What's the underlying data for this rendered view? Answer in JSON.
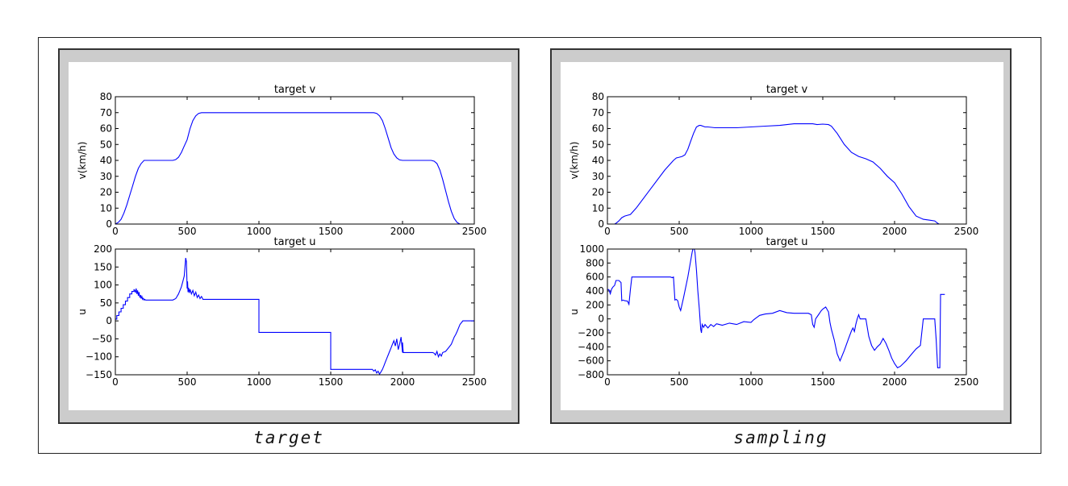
{
  "captions": [
    "target",
    "sampling"
  ],
  "chart_data": [
    {
      "type": "line",
      "panel": "target",
      "title": "target v",
      "xlabel": "",
      "ylabel": "v(km/h)",
      "xlim": [
        0,
        2500
      ],
      "ylim": [
        0,
        80
      ],
      "xticks": [
        "0",
        "500",
        "1000",
        "1500",
        "2000",
        "2500"
      ],
      "yticks": [
        "0",
        "10",
        "20",
        "30",
        "40",
        "50",
        "60",
        "70",
        "80"
      ],
      "color": "#0000ff",
      "x": [
        0,
        20,
        40,
        60,
        80,
        100,
        120,
        140,
        160,
        180,
        200,
        220,
        250,
        300,
        350,
        400,
        420,
        440,
        460,
        480,
        500,
        520,
        540,
        560,
        580,
        600,
        620,
        700,
        800,
        1000,
        1200,
        1400,
        1600,
        1800,
        1820,
        1840,
        1860,
        1880,
        1900,
        1920,
        1940,
        1960,
        1980,
        2000,
        2050,
        2100,
        2200,
        2220,
        2240,
        2260,
        2280,
        2300,
        2320,
        2340,
        2360,
        2380,
        2400,
        2420,
        2450,
        2500
      ],
      "y": [
        0,
        1,
        3,
        7,
        12,
        18,
        24,
        30,
        35,
        38,
        40,
        40,
        40,
        40,
        40,
        40,
        40.5,
        42,
        45,
        49,
        53,
        60,
        65,
        68,
        69.5,
        70,
        70,
        70,
        70,
        70,
        70,
        70,
        70,
        70,
        69.5,
        68,
        65,
        60,
        54,
        48,
        44,
        41.5,
        40.3,
        40,
        40,
        40,
        40,
        39.5,
        38,
        34,
        28,
        21,
        14,
        8,
        3.5,
        1,
        0,
        0,
        0,
        0
      ]
    },
    {
      "type": "line",
      "panel": "target",
      "title": "target u",
      "xlabel": "",
      "ylabel": "u",
      "xlim": [
        0,
        2500
      ],
      "ylim": [
        -150,
        200
      ],
      "xticks": [
        "0",
        "500",
        "1000",
        "1500",
        "2000",
        "2500"
      ],
      "yticks": [
        "200",
        "150",
        "100",
        "50",
        "0",
        "−50",
        "−100",
        "−150"
      ],
      "color": "#0000ff",
      "x": [
        0,
        10,
        10,
        25,
        25,
        40,
        40,
        55,
        55,
        70,
        70,
        85,
        85,
        100,
        100,
        115,
        115,
        130,
        130,
        140,
        145,
        150,
        155,
        160,
        165,
        170,
        175,
        180,
        185,
        190,
        195,
        200,
        205,
        210,
        400,
        420,
        430,
        440,
        450,
        460,
        470,
        480,
        485,
        490,
        495,
        500,
        503,
        506,
        510,
        515,
        520,
        530,
        540,
        550,
        560,
        570,
        580,
        590,
        600,
        610,
        1000,
        1000,
        1500,
        1500,
        1790,
        1800,
        1810,
        1820,
        1830,
        1840,
        1850,
        1860,
        1870,
        1880,
        1890,
        1900,
        1910,
        1920,
        1930,
        1940,
        1950,
        1960,
        1970,
        1980,
        1990,
        2000,
        2000,
        2005,
        2010,
        2210,
        2220,
        2230,
        2240,
        2250,
        2260,
        2270,
        2280,
        2300,
        2320,
        2340,
        2350,
        2360,
        2370,
        2380,
        2390,
        2400,
        2410,
        2420,
        2430,
        2500
      ],
      "y": [
        5,
        5,
        15,
        15,
        25,
        25,
        35,
        35,
        45,
        45,
        55,
        55,
        65,
        65,
        75,
        75,
        82,
        82,
        88,
        80,
        90,
        75,
        85,
        70,
        80,
        65,
        72,
        62,
        68,
        60,
        63,
        58,
        60,
        58,
        58,
        62,
        68,
        75,
        85,
        95,
        110,
        125,
        150,
        175,
        165,
        90,
        110,
        80,
        92,
        78,
        88,
        75,
        85,
        70,
        80,
        65,
        72,
        62,
        68,
        60,
        60,
        -32,
        -32,
        -135,
        -135,
        -140,
        -136,
        -145,
        -140,
        -148,
        -142,
        -135,
        -125,
        -115,
        -105,
        -95,
        -85,
        -75,
        -65,
        -55,
        -70,
        -50,
        -80,
        -65,
        -45,
        -88,
        -60,
        -88,
        -88,
        -88,
        -90,
        -95,
        -85,
        -100,
        -92,
        -98,
        -88,
        -85,
        -75,
        -65,
        -55,
        -45,
        -38,
        -30,
        -20,
        -10,
        -5,
        0,
        0,
        0
      ]
    },
    {
      "type": "line",
      "panel": "sampling",
      "title": "target v",
      "xlabel": "",
      "ylabel": "v(km/h)",
      "xlim": [
        0,
        2500
      ],
      "ylim": [
        0,
        80
      ],
      "xticks": [
        "0",
        "500",
        "1000",
        "1500",
        "2000",
        "2500"
      ],
      "yticks": [
        "0",
        "10",
        "20",
        "30",
        "40",
        "50",
        "60",
        "70",
        "80"
      ],
      "color": "#0000ff",
      "x": [
        0,
        50,
        60,
        80,
        100,
        120,
        140,
        160,
        200,
        300,
        400,
        460,
        480,
        500,
        520,
        540,
        560,
        580,
        600,
        620,
        640,
        650,
        680,
        700,
        750,
        800,
        850,
        900,
        1000,
        1100,
        1200,
        1300,
        1400,
        1430,
        1460,
        1500,
        1540,
        1560,
        1600,
        1650,
        1700,
        1750,
        1800,
        1850,
        1900,
        1950,
        2000,
        2050,
        2100,
        2150,
        2200,
        2240,
        2280,
        2300,
        2310
      ],
      "y": [
        0,
        0,
        0.5,
        2,
        4,
        5,
        5.5,
        6,
        10,
        22,
        34,
        40,
        41.5,
        42,
        42.5,
        43.5,
        47,
        52,
        57,
        61,
        62,
        62,
        61,
        61,
        60.5,
        60.5,
        60.5,
        60.5,
        61,
        61.5,
        62,
        63,
        63,
        63,
        62.5,
        62.8,
        62.5,
        61.5,
        57,
        50,
        45,
        42.5,
        41,
        39,
        35,
        30,
        26,
        19,
        11,
        5,
        3,
        2.5,
        2,
        0.5,
        0
      ]
    },
    {
      "type": "line",
      "panel": "sampling",
      "title": "target u",
      "xlabel": "",
      "ylabel": "u",
      "xlim": [
        0,
        2500
      ],
      "ylim": [
        -800,
        1000
      ],
      "xticks": [
        "0",
        "500",
        "1000",
        "1500",
        "2000",
        "2500"
      ],
      "yticks": [
        "1000",
        "800",
        "600",
        "400",
        "200",
        "0",
        "−200",
        "−400",
        "−600",
        "−800"
      ],
      "color": "#0000ff",
      "x": [
        0,
        10,
        20,
        30,
        40,
        50,
        60,
        80,
        95,
        100,
        110,
        120,
        140,
        150,
        160,
        170,
        180,
        300,
        440,
        450,
        460,
        470,
        480,
        490,
        500,
        510,
        530,
        560,
        590,
        600,
        610,
        620,
        630,
        640,
        650,
        655,
        660,
        670,
        680,
        700,
        720,
        740,
        760,
        800,
        850,
        900,
        950,
        1000,
        1020,
        1040,
        1060,
        1100,
        1150,
        1200,
        1250,
        1300,
        1400,
        1420,
        1430,
        1440,
        1450,
        1470,
        1490,
        1500,
        1520,
        1540,
        1550,
        1560,
        1580,
        1600,
        1620,
        1650,
        1680,
        1700,
        1710,
        1720,
        1730,
        1740,
        1750,
        1760,
        1780,
        1800,
        1820,
        1840,
        1860,
        1880,
        1900,
        1920,
        1940,
        1960,
        1980,
        2000,
        2020,
        2040,
        2060,
        2080,
        2120,
        2150,
        2180,
        2200,
        2210,
        2220,
        2240,
        2280,
        2290,
        2300,
        2310,
        2315,
        2320,
        2330,
        2340,
        2350
      ],
      "y": [
        420,
        420,
        360,
        430,
        460,
        480,
        550,
        550,
        520,
        260,
        270,
        260,
        255,
        210,
        420,
        600,
        600,
        600,
        600,
        590,
        600,
        270,
        280,
        260,
        170,
        120,
        300,
        600,
        950,
        1050,
        950,
        700,
        400,
        150,
        -150,
        -200,
        -80,
        -120,
        -80,
        -130,
        -80,
        -110,
        -70,
        -90,
        -60,
        -80,
        -40,
        -50,
        -10,
        20,
        50,
        70,
        80,
        120,
        90,
        80,
        80,
        60,
        -80,
        -120,
        0,
        60,
        120,
        140,
        170,
        100,
        -50,
        -150,
        -300,
        -500,
        -600,
        -450,
        -280,
        -170,
        -130,
        -180,
        -80,
        0,
        60,
        0,
        0,
        0,
        -250,
        -380,
        -450,
        -400,
        -360,
        -280,
        -350,
        -450,
        -560,
        -640,
        -700,
        -680,
        -640,
        -600,
        -500,
        -430,
        -380,
        0,
        0,
        0,
        0,
        0,
        -300,
        -700,
        -700,
        -700,
        350,
        350,
        350,
        350
      ]
    }
  ]
}
